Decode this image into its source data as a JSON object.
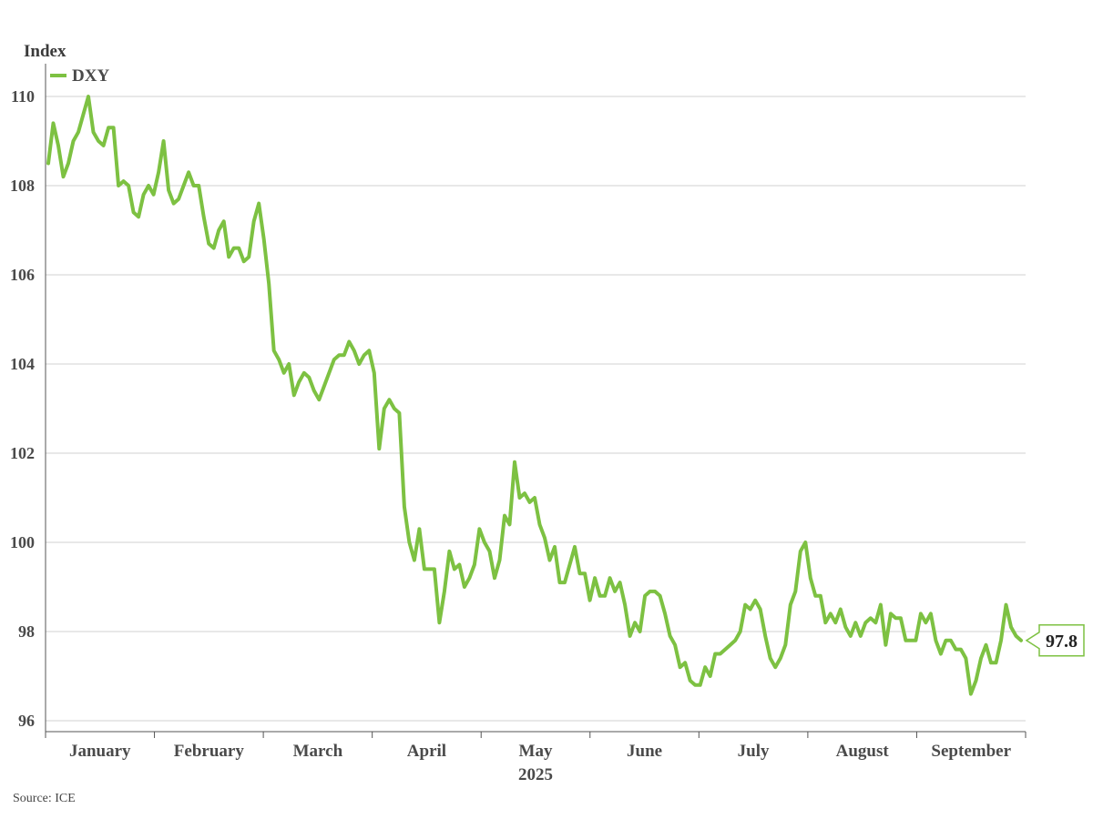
{
  "chart_data": {
    "type": "line",
    "ylabel": "Index",
    "xlabel": "2025",
    "ylim": [
      96,
      110
    ],
    "yticks": [
      96,
      98,
      100,
      102,
      104,
      106,
      108,
      110
    ],
    "months": [
      "January",
      "February",
      "March",
      "April",
      "May",
      "June",
      "July",
      "August",
      "September"
    ],
    "year_label": "2025",
    "grid": true,
    "legend_placement": "top-left",
    "colors": {
      "line": "#7dc142",
      "grid": "#d0d0d0",
      "axis": "#555555"
    },
    "series": [
      {
        "name": "DXY",
        "last_value_label": "97.8",
        "values": [
          108.5,
          109.4,
          108.9,
          108.2,
          108.5,
          109.0,
          109.2,
          109.6,
          110.0,
          109.2,
          109.0,
          108.9,
          109.3,
          109.3,
          108.0,
          108.1,
          108.0,
          107.4,
          107.3,
          107.8,
          108.0,
          107.8,
          108.3,
          109.0,
          107.9,
          107.6,
          107.7,
          108.0,
          108.3,
          108.0,
          108.0,
          107.3,
          106.7,
          106.6,
          107.0,
          107.2,
          106.4,
          106.6,
          106.6,
          106.3,
          106.4,
          107.2,
          107.6,
          106.8,
          105.8,
          104.3,
          104.1,
          103.8,
          104.0,
          103.3,
          103.6,
          103.8,
          103.7,
          103.4,
          103.2,
          103.5,
          103.8,
          104.1,
          104.2,
          104.2,
          104.5,
          104.3,
          104.0,
          104.2,
          104.3,
          103.8,
          102.1,
          103.0,
          103.2,
          103.0,
          102.9,
          100.8,
          100.0,
          99.6,
          100.3,
          99.4,
          99.4,
          99.4,
          98.2,
          98.9,
          99.8,
          99.4,
          99.5,
          99.0,
          99.2,
          99.5,
          100.3,
          100.0,
          99.8,
          99.2,
          99.6,
          100.6,
          100.4,
          101.8,
          101.0,
          101.1,
          100.9,
          101.0,
          100.4,
          100.1,
          99.6,
          99.9,
          99.1,
          99.1,
          99.5,
          99.9,
          99.3,
          99.3,
          98.7,
          99.2,
          98.8,
          98.8,
          99.2,
          98.9,
          99.1,
          98.6,
          97.9,
          98.2,
          98.0,
          98.8,
          98.9,
          98.9,
          98.8,
          98.4,
          97.9,
          97.7,
          97.2,
          97.3,
          96.9,
          96.8,
          96.8,
          97.2,
          97.0,
          97.5,
          97.5,
          97.6,
          97.7,
          97.8,
          98.0,
          98.6,
          98.5,
          98.7,
          98.5,
          97.9,
          97.4,
          97.2,
          97.4,
          97.7,
          98.6,
          98.9,
          99.8,
          100.0,
          99.2,
          98.8,
          98.8,
          98.2,
          98.4,
          98.2,
          98.5,
          98.1,
          97.9,
          98.2,
          97.9,
          98.2,
          98.3,
          98.2,
          98.6,
          97.7,
          98.4,
          98.3,
          98.3,
          97.8,
          97.8,
          97.8,
          98.4,
          98.2,
          98.4,
          97.8,
          97.5,
          97.8,
          97.8,
          97.6,
          97.6,
          97.4,
          96.6,
          96.9,
          97.4,
          97.7,
          97.3,
          97.3,
          97.8,
          98.6,
          98.1,
          97.9,
          97.8
        ]
      }
    ]
  },
  "source_text": "Source: ICE"
}
